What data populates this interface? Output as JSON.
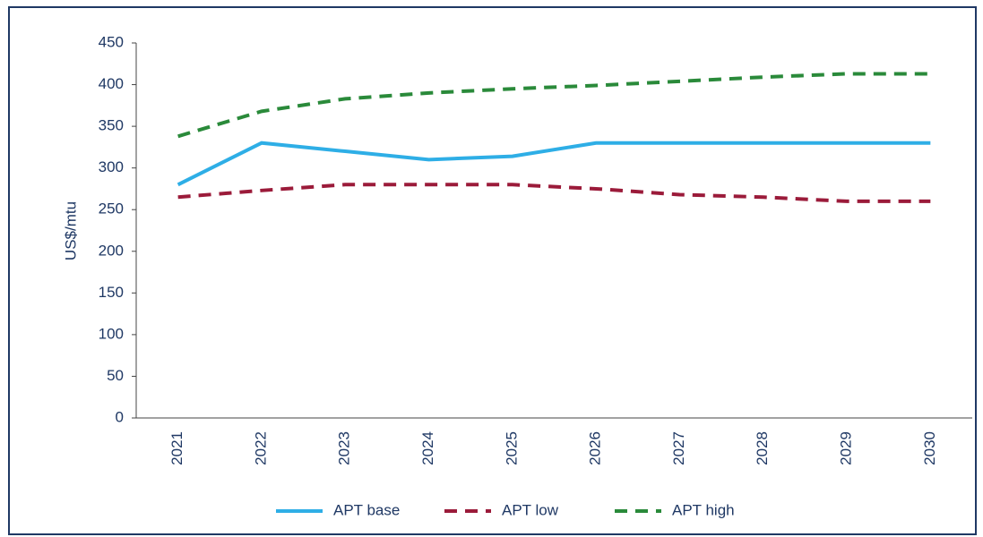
{
  "chart_data": {
    "type": "line",
    "y_label": "US$/mtu",
    "categories": [
      "2021",
      "2022",
      "2023",
      "2024",
      "2025",
      "2026",
      "2027",
      "2028",
      "2029",
      "2030"
    ],
    "series": [
      {
        "name": "APT base",
        "color": "#2eaee6",
        "dash": false,
        "values": [
          280,
          330,
          320,
          310,
          314,
          330,
          330,
          330,
          330,
          330
        ]
      },
      {
        "name": "APT low",
        "color": "#9b1b3a",
        "dash": true,
        "values": [
          265,
          273,
          280,
          280,
          280,
          275,
          268,
          265,
          260,
          260
        ]
      },
      {
        "name": "APT high",
        "color": "#2a8a3a",
        "dash": true,
        "values": [
          338,
          368,
          383,
          390,
          395,
          399,
          404,
          409,
          413,
          413
        ]
      }
    ],
    "ylim": [
      0,
      450
    ],
    "yticks": [
      0,
      50,
      100,
      150,
      200,
      250,
      300,
      350,
      400,
      450
    ],
    "grid": false,
    "legend": "bottom"
  }
}
